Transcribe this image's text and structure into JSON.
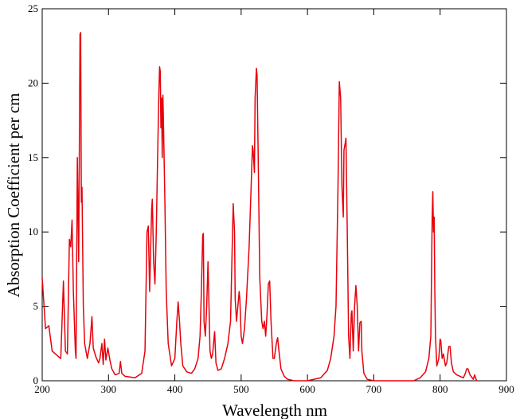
{
  "chart_data": {
    "type": "line",
    "xlabel": "Wavelength nm",
    "ylabel": "Absorption Coefficient per cm",
    "x": [
      200,
      205,
      210,
      215,
      225,
      228,
      232,
      235,
      238,
      241,
      243,
      245,
      247,
      250,
      251,
      253,
      255,
      257,
      258,
      259,
      260,
      262,
      264,
      268,
      272,
      275,
      277,
      281,
      285,
      287,
      290,
      292,
      294,
      296,
      299,
      302,
      305,
      310,
      316,
      318,
      320,
      325,
      340,
      350,
      355,
      358,
      360,
      362,
      365,
      366,
      368,
      370,
      372,
      374,
      376,
      377,
      378,
      379,
      380,
      381,
      382,
      383,
      385,
      387,
      390,
      395,
      400,
      403,
      405,
      407,
      409,
      412,
      418,
      425,
      430,
      435,
      438,
      440,
      442,
      443,
      444,
      446,
      448,
      450,
      451,
      453,
      455,
      457,
      460,
      462,
      465,
      470,
      475,
      480,
      484,
      486,
      488,
      490,
      491,
      493,
      495,
      497,
      498,
      500,
      502,
      505,
      508,
      512,
      515,
      517,
      518,
      520,
      521,
      523,
      524,
      526,
      528,
      531,
      533,
      535,
      537,
      539,
      541,
      543,
      545,
      548,
      550,
      553,
      555,
      557,
      560,
      565,
      570,
      580,
      600,
      620,
      630,
      635,
      640,
      643,
      646,
      648,
      650,
      652,
      654,
      655,
      657,
      658,
      660,
      662,
      664,
      666,
      667,
      669,
      671,
      673,
      675,
      677,
      679,
      681,
      682,
      685,
      690,
      700,
      760,
      770,
      778,
      783,
      786,
      788,
      789,
      790,
      791,
      792,
      793,
      795,
      798,
      800,
      801,
      803,
      805,
      808,
      810,
      813,
      815,
      817,
      820,
      825,
      830,
      835,
      838,
      840,
      842,
      845,
      850,
      852,
      855
    ],
    "series": [
      {
        "color": "#e8000b",
        "values": [
          6.9,
          3.5,
          3.7,
          2,
          1.6,
          1.5,
          6.7,
          2,
          1.8,
          9.5,
          9,
          10.8,
          6,
          2,
          1.5,
          15,
          8,
          23.3,
          23.4,
          12,
          13,
          5,
          2.5,
          1.5,
          2.5,
          4.3,
          2.2,
          1.6,
          1.2,
          1.5,
          2.5,
          1.1,
          2.8,
          1.4,
          2.2,
          1.4,
          0.8,
          0.4,
          0.5,
          1.3,
          0.5,
          0.3,
          0.2,
          0.5,
          2,
          10,
          10.4,
          6,
          11.5,
          12.2,
          8,
          6.5,
          10,
          15,
          19.5,
          21.1,
          20.8,
          17,
          19,
          15,
          19.2,
          17,
          12,
          6,
          2.5,
          1,
          1.5,
          4,
          5.3,
          4,
          2.5,
          1,
          0.6,
          0.5,
          0.8,
          1.5,
          3,
          6,
          9.8,
          9.9,
          4,
          3,
          5,
          8,
          6,
          2,
          1.5,
          1.8,
          3.3,
          1.2,
          0.7,
          0.8,
          1.5,
          2.5,
          4,
          8,
          11.9,
          10,
          5.5,
          4,
          5,
          6,
          5.5,
          3,
          2.5,
          3.5,
          5.5,
          9,
          13,
          15.8,
          15.5,
          14,
          19,
          21,
          20.5,
          14,
          7,
          4,
          3.5,
          4,
          3,
          4.5,
          6.5,
          6.7,
          4,
          1.5,
          1.5,
          2.5,
          2.9,
          2,
          0.8,
          0.3,
          0.1,
          0,
          0,
          0.2,
          0.7,
          1.5,
          3,
          5,
          13,
          20.1,
          19,
          13,
          11,
          15.5,
          16,
          16.3,
          10,
          3,
          1.5,
          4.5,
          4.7,
          2,
          5,
          6.4,
          5,
          2,
          3.9,
          4,
          2,
          0.5,
          0.1,
          0,
          0,
          0.2,
          0.6,
          1.5,
          3,
          11,
          12.7,
          10,
          11,
          6,
          3,
          1,
          1.5,
          2.8,
          2.7,
          1.5,
          1.8,
          1,
          1.2,
          2.3,
          2.3,
          1.2,
          0.6,
          0.4,
          0.3,
          0.2,
          0.5,
          0.8,
          0.8,
          0.4,
          0.1,
          0.4,
          0
        ]
      }
    ],
    "xlim": [
      200,
      900
    ],
    "xticks": [
      200,
      300,
      400,
      500,
      600,
      700,
      800,
      900
    ],
    "ylim": [
      0,
      25
    ],
    "yticks": [
      0,
      5,
      10,
      15,
      20,
      25
    ]
  }
}
